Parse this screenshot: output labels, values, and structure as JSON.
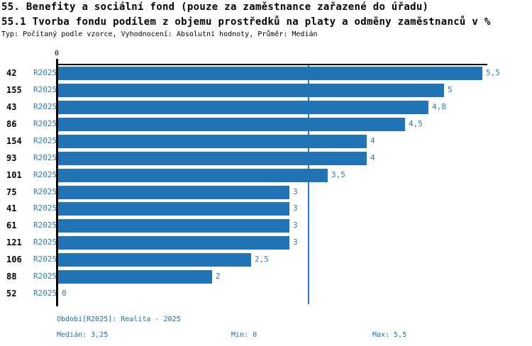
{
  "title": {
    "line1": "55. Benefity a sociální fond (pouze za zaměstnance zařazené do úřadu)",
    "line2": "55.1 Tvorba fondu podílem z objemu prostředků na platy a odměny zaměstnanců v %",
    "subtitle": "Typ: Počítaný podle vzorce, Vyhodnocení: Absolutní hodnoty, Průměr: Medián"
  },
  "chart_data": {
    "type": "bar",
    "orientation": "horizontal",
    "series_label": "R2025",
    "categories": [
      "42",
      "155",
      "43",
      "86",
      "154",
      "93",
      "101",
      "75",
      "41",
      "61",
      "121",
      "106",
      "88",
      "52"
    ],
    "values": [
      5.5,
      5,
      4.8,
      4.5,
      4,
      4,
      3.5,
      3,
      3,
      3,
      3,
      2.5,
      2,
      0
    ],
    "value_labels": [
      "5,5",
      "5",
      "4,8",
      "4,5",
      "4",
      "4",
      "3,5",
      "3",
      "3",
      "3",
      "3",
      "2,5",
      "2",
      "0"
    ],
    "x_axis": {
      "tick_labels": [
        "0"
      ],
      "range": [
        0,
        5.55
      ]
    },
    "median": 3.25,
    "grid": false,
    "legend_position": "none",
    "colors": {
      "bar": "#2274B4",
      "median_line": "#2B7CB9",
      "series_label_text": "#2B7CB9",
      "value_label_text": "#2B7CB9",
      "category_label_text": "#000000",
      "axis": "#000000",
      "footer_text": "#17719A"
    }
  },
  "footer": {
    "period": "Období[R2025]: Realita - 2025",
    "median": "Medián: 3,25",
    "min": "Min: 0",
    "max": "Max: 5,5"
  }
}
